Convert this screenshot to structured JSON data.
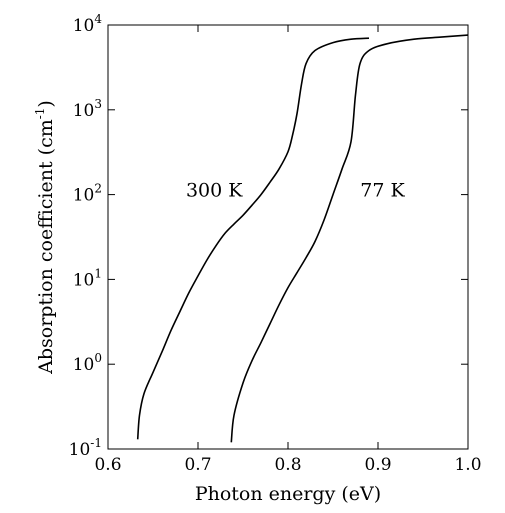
{
  "chart_data": {
    "type": "line",
    "title": "",
    "xlabel": "Photon energy (eV)",
    "ylabel_main": "Absorption coefficient (cm",
    "ylabel_sup": "-1",
    "ylabel_close": ")",
    "xlim": [
      0.6,
      1.0
    ],
    "ylim": [
      0.1,
      10000
    ],
    "yscale": "log",
    "grid": false,
    "x_ticks": [
      {
        "value": 0.6,
        "label": "0.6"
      },
      {
        "value": 0.7,
        "label": "0.7"
      },
      {
        "value": 0.8,
        "label": "0.8"
      },
      {
        "value": 0.9,
        "label": "0.9"
      },
      {
        "value": 1.0,
        "label": "1.0"
      }
    ],
    "y_ticks": [
      {
        "value": 0.1,
        "base": "10",
        "exp": "-1"
      },
      {
        "value": 1,
        "base": "10",
        "exp": "0"
      },
      {
        "value": 10,
        "base": "10",
        "exp": "1"
      },
      {
        "value": 100,
        "base": "10",
        "exp": "2"
      },
      {
        "value": 1000,
        "base": "10",
        "exp": "3"
      },
      {
        "value": 10000,
        "base": "10",
        "exp": "4"
      }
    ],
    "series": [
      {
        "name": "300 K",
        "color": "#000000",
        "points": [
          [
            0.633,
            0.13
          ],
          [
            0.635,
            0.25
          ],
          [
            0.64,
            0.45
          ],
          [
            0.65,
            0.8
          ],
          [
            0.66,
            1.4
          ],
          [
            0.67,
            2.5
          ],
          [
            0.68,
            4.2
          ],
          [
            0.69,
            7.0
          ],
          [
            0.7,
            11
          ],
          [
            0.71,
            17
          ],
          [
            0.72,
            25
          ],
          [
            0.73,
            35
          ],
          [
            0.74,
            45
          ],
          [
            0.75,
            57
          ],
          [
            0.76,
            75
          ],
          [
            0.77,
            100
          ],
          [
            0.78,
            140
          ],
          [
            0.79,
            200
          ],
          [
            0.8,
            320
          ],
          [
            0.805,
            500
          ],
          [
            0.81,
            900
          ],
          [
            0.815,
            2000
          ],
          [
            0.82,
            3500
          ],
          [
            0.83,
            5000
          ],
          [
            0.85,
            6200
          ],
          [
            0.87,
            6800
          ],
          [
            0.89,
            7000
          ]
        ]
      },
      {
        "name": "77 K",
        "color": "#000000",
        "points": [
          [
            0.737,
            0.12
          ],
          [
            0.74,
            0.25
          ],
          [
            0.75,
            0.6
          ],
          [
            0.76,
            1.1
          ],
          [
            0.77,
            1.8
          ],
          [
            0.78,
            3.0
          ],
          [
            0.79,
            5.0
          ],
          [
            0.8,
            8.0
          ],
          [
            0.81,
            12
          ],
          [
            0.82,
            18
          ],
          [
            0.83,
            28
          ],
          [
            0.84,
            50
          ],
          [
            0.85,
            100
          ],
          [
            0.86,
            200
          ],
          [
            0.87,
            420
          ],
          [
            0.875,
            1500
          ],
          [
            0.88,
            3500
          ],
          [
            0.89,
            5000
          ],
          [
            0.91,
            6000
          ],
          [
            0.94,
            6800
          ],
          [
            0.97,
            7200
          ],
          [
            1.0,
            7600
          ]
        ]
      }
    ],
    "annotations": [
      {
        "text": "300 K",
        "x": 0.718,
        "y": 95
      },
      {
        "text": "77 K",
        "x": 0.905,
        "y": 95
      }
    ]
  }
}
